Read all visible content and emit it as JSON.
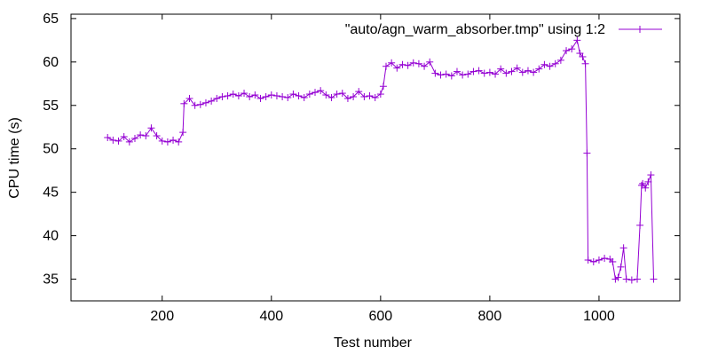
{
  "chart_data": {
    "type": "line",
    "title": "",
    "xlabel": "Test number",
    "ylabel": "CPU time (s)",
    "xlim": [
      33,
      1148
    ],
    "ylim": [
      32.5,
      65.5
    ],
    "xticks": [
      200,
      400,
      600,
      800,
      1000
    ],
    "yticks": [
      35,
      40,
      45,
      50,
      55,
      60,
      65
    ],
    "grid": false,
    "legend_position": "top-right",
    "series_color": "#9400d3",
    "series": [
      {
        "name": "\"auto/agn_warm_absorber.tmp\" using 1:2",
        "style": "linespoints",
        "marker": "plus-icon",
        "x": [
          100,
          110,
          120,
          130,
          140,
          150,
          160,
          170,
          180,
          190,
          200,
          210,
          220,
          230,
          238,
          240,
          250,
          260,
          270,
          280,
          290,
          300,
          310,
          320,
          330,
          340,
          350,
          360,
          370,
          380,
          390,
          400,
          410,
          420,
          430,
          440,
          450,
          460,
          470,
          480,
          490,
          500,
          510,
          520,
          530,
          540,
          550,
          560,
          570,
          580,
          590,
          600,
          605,
          610,
          620,
          630,
          640,
          650,
          660,
          670,
          680,
          690,
          700,
          710,
          720,
          730,
          740,
          750,
          760,
          770,
          780,
          790,
          800,
          810,
          820,
          830,
          840,
          850,
          860,
          870,
          880,
          890,
          900,
          910,
          920,
          930,
          940,
          950,
          960,
          965,
          970,
          975,
          978,
          980,
          990,
          1000,
          1010,
          1020,
          1025,
          1030,
          1035,
          1040,
          1045,
          1050,
          1060,
          1070,
          1075,
          1078,
          1080,
          1085,
          1090,
          1095,
          1100
        ],
        "values": [
          51.3,
          51.0,
          50.9,
          51.4,
          50.8,
          51.2,
          51.6,
          51.5,
          52.4,
          51.5,
          50.9,
          50.8,
          51.0,
          50.8,
          51.9,
          55.2,
          55.8,
          55.0,
          55.1,
          55.3,
          55.5,
          55.8,
          56.0,
          56.1,
          56.3,
          56.1,
          56.4,
          56.0,
          56.2,
          55.8,
          56.0,
          56.2,
          56.1,
          56.0,
          55.9,
          56.3,
          56.1,
          55.9,
          56.3,
          56.5,
          56.7,
          56.2,
          55.9,
          56.3,
          56.4,
          55.8,
          56.0,
          56.6,
          56.0,
          56.1,
          55.9,
          56.3,
          57.2,
          59.5,
          59.9,
          59.3,
          59.7,
          59.6,
          59.9,
          59.8,
          59.5,
          60.0,
          58.7,
          58.5,
          58.6,
          58.4,
          58.9,
          58.5,
          58.6,
          58.9,
          59.0,
          58.7,
          58.8,
          58.6,
          59.2,
          58.7,
          58.9,
          59.3,
          58.8,
          59.0,
          58.8,
          59.2,
          59.7,
          59.5,
          59.8,
          60.2,
          61.3,
          61.5,
          62.5,
          61.0,
          60.6,
          59.8,
          49.5,
          37.2,
          37.0,
          37.2,
          37.4,
          37.3,
          37.0,
          35.0,
          35.2,
          36.4,
          38.6,
          35.0,
          34.9,
          35.0,
          41.2,
          45.8,
          46.0,
          45.5,
          46.2,
          47.0,
          35.0
        ]
      }
    ]
  }
}
